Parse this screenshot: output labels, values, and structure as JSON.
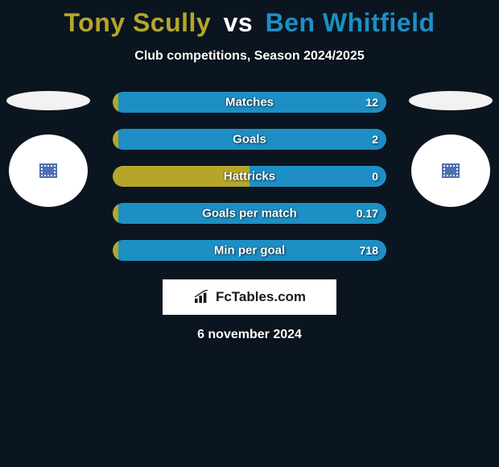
{
  "title": {
    "player1": "Tony Scully",
    "vs": "vs",
    "player2": "Ben Whitfield",
    "player1_color": "#b5a62b",
    "player2_color": "#1d8fc4"
  },
  "subtitle": "Club competitions, Season 2024/2025",
  "colors": {
    "left_bar": "#b5a62b",
    "right_bar": "#1d8fc4",
    "background": "#0b1520"
  },
  "bars": [
    {
      "label": "Matches",
      "left_val": "",
      "right_val": "12",
      "left_pct": 2,
      "right_pct": 98
    },
    {
      "label": "Goals",
      "left_val": "",
      "right_val": "2",
      "left_pct": 2,
      "right_pct": 98
    },
    {
      "label": "Hattricks",
      "left_val": "",
      "right_val": "0",
      "left_pct": 50,
      "right_pct": 50
    },
    {
      "label": "Goals per match",
      "left_val": "",
      "right_val": "0.17",
      "left_pct": 2,
      "right_pct": 98
    },
    {
      "label": "Min per goal",
      "left_val": "",
      "right_val": "718",
      "left_pct": 2,
      "right_pct": 98
    }
  ],
  "brand": "FcTables.com",
  "date": "6 november 2024"
}
